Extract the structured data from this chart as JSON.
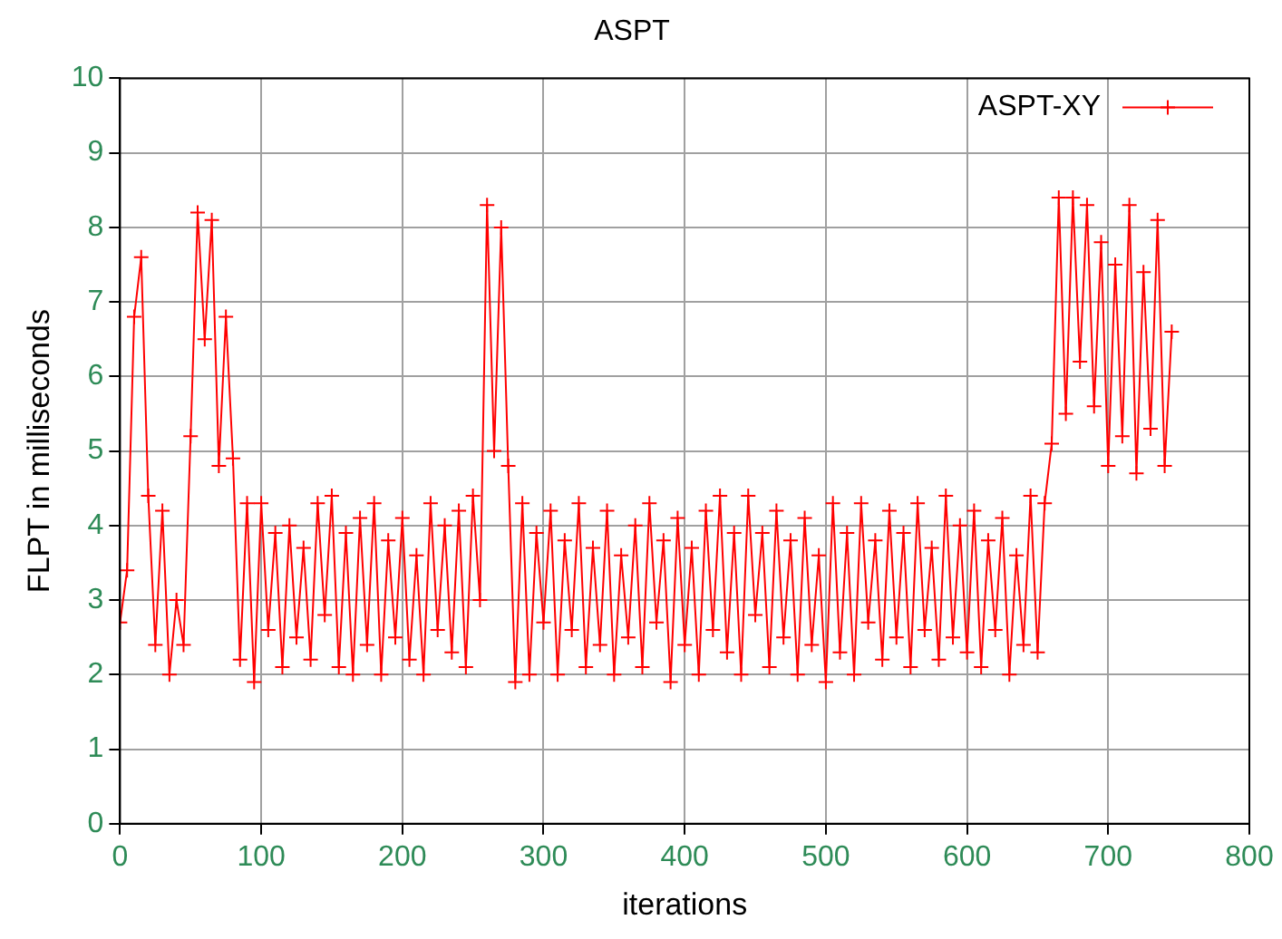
{
  "chart_data": {
    "type": "line",
    "title": "ASPT",
    "xlabel": "iterations",
    "ylabel": "FLPT in milliseconds",
    "x": [
      0,
      5,
      10,
      15,
      20,
      25,
      30,
      35,
      40,
      45,
      50,
      55,
      60,
      65,
      70,
      75,
      80,
      85,
      90,
      95,
      100,
      105,
      110,
      115,
      120,
      125,
      130,
      135,
      140,
      145,
      150,
      155,
      160,
      165,
      170,
      175,
      180,
      185,
      190,
      195,
      200,
      205,
      210,
      215,
      220,
      225,
      230,
      235,
      240,
      245,
      250,
      255,
      260,
      265,
      270,
      275,
      280,
      285,
      290,
      295,
      300,
      305,
      310,
      315,
      320,
      325,
      330,
      335,
      340,
      345,
      350,
      355,
      360,
      365,
      370,
      375,
      380,
      385,
      390,
      395,
      400,
      405,
      410,
      415,
      420,
      425,
      430,
      435,
      440,
      445,
      450,
      455,
      460,
      465,
      470,
      475,
      480,
      485,
      490,
      495,
      500,
      505,
      510,
      515,
      520,
      525,
      530,
      535,
      540,
      545,
      550,
      555,
      560,
      565,
      570,
      575,
      580,
      585,
      590,
      595,
      600,
      605,
      610,
      615,
      620,
      625,
      630,
      635,
      640,
      645,
      650,
      655,
      660,
      665,
      670,
      675,
      680,
      685,
      690,
      695,
      700,
      705,
      710,
      715,
      720,
      725,
      730,
      735,
      740,
      745
    ],
    "series": [
      {
        "name": "ASPT-XY",
        "color": "#ff0000",
        "values": [
          2.7,
          3.4,
          6.8,
          7.6,
          4.4,
          2.4,
          4.2,
          2.0,
          3.0,
          2.4,
          5.2,
          8.2,
          6.5,
          8.1,
          4.8,
          6.8,
          4.9,
          2.2,
          4.3,
          1.9,
          4.3,
          2.6,
          3.9,
          2.1,
          4.0,
          2.5,
          3.7,
          2.2,
          4.3,
          2.8,
          4.4,
          2.1,
          3.9,
          2.0,
          4.1,
          2.4,
          4.3,
          2.0,
          3.8,
          2.5,
          4.1,
          2.2,
          3.6,
          2.0,
          4.3,
          2.6,
          4.0,
          2.3,
          4.2,
          2.1,
          4.4,
          3.0,
          8.3,
          5.0,
          8.0,
          4.8,
          1.9,
          4.3,
          2.0,
          3.9,
          2.7,
          4.2,
          2.0,
          3.8,
          2.6,
          4.3,
          2.1,
          3.7,
          2.4,
          4.2,
          2.0,
          3.6,
          2.5,
          4.0,
          2.1,
          4.3,
          2.7,
          3.8,
          1.9,
          4.1,
          2.4,
          3.7,
          2.0,
          4.2,
          2.6,
          4.4,
          2.3,
          3.9,
          2.0,
          4.4,
          2.8,
          3.9,
          2.1,
          4.2,
          2.5,
          3.8,
          2.0,
          4.1,
          2.4,
          3.6,
          1.9,
          4.3,
          2.3,
          3.9,
          2.0,
          4.3,
          2.7,
          3.8,
          2.2,
          4.2,
          2.5,
          3.9,
          2.1,
          4.3,
          2.6,
          3.7,
          2.2,
          4.4,
          2.5,
          4.0,
          2.3,
          4.2,
          2.1,
          3.8,
          2.6,
          4.1,
          2.0,
          3.6,
          2.4,
          4.4,
          2.3,
          4.3,
          5.1,
          8.4,
          5.5,
          8.4,
          6.2,
          8.3,
          5.6,
          7.8,
          4.8,
          7.5,
          5.2,
          8.3,
          4.7,
          7.4,
          5.3,
          8.1,
          4.8,
          6.6
        ]
      }
    ],
    "xlim": [
      0,
      800
    ],
    "xticks": [
      0,
      100,
      200,
      300,
      400,
      500,
      600,
      700,
      800
    ],
    "ylim": [
      0,
      10
    ],
    "yticks": [
      0,
      1,
      2,
      3,
      4,
      5,
      6,
      7,
      8,
      9,
      10
    ],
    "grid": true,
    "legend": "top right",
    "marker": "cross",
    "line_style": "solid"
  }
}
